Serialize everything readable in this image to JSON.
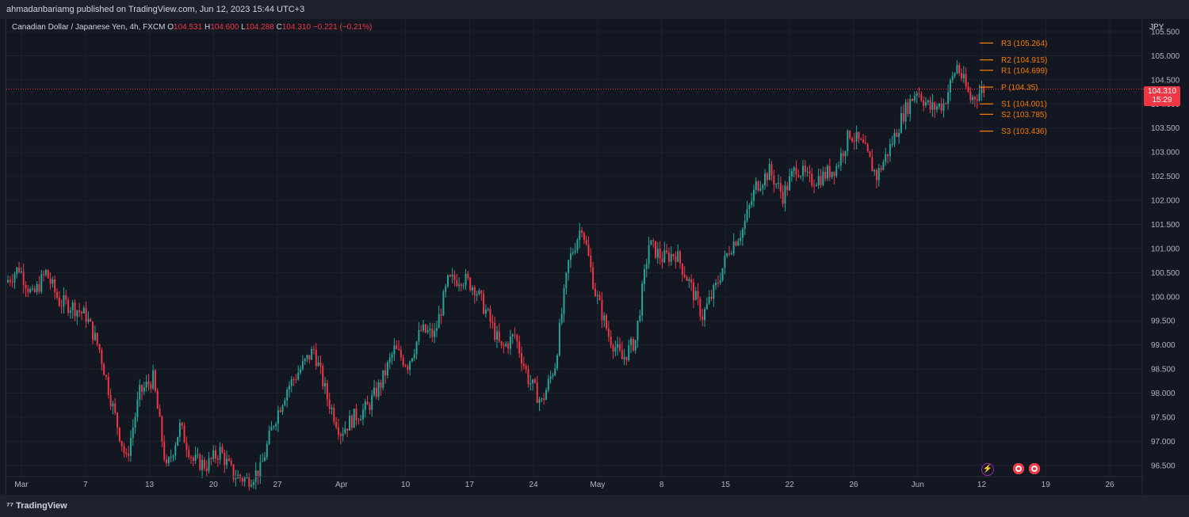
{
  "header": {
    "published": "ahmadanbariamg published on TradingView.com, Jun 12, 2023 15:44 UTC+3"
  },
  "legend": {
    "symbol": "Canadian Dollar / Japanese Yen, 4h, FXCM",
    "open_label": "O",
    "open": "104.531",
    "high_label": "H",
    "high": "104.600",
    "low_label": "L",
    "low": "104.288",
    "close_label": "C",
    "close": "104.310",
    "change": "−0.221 (−0.21%)"
  },
  "price_axis": {
    "currency": "JPY",
    "current_price": "104.310",
    "countdown": "15:29"
  },
  "footer": {
    "brand": "TradingView"
  },
  "colors": {
    "up": "#26a69a",
    "down": "#f23645",
    "pivot": "#f57c00",
    "background": "#131722",
    "grid": "#1e222d"
  },
  "icons": {
    "event_lightning": "lightning-icon",
    "event_dividend": "event-marker-icon"
  },
  "chart_data": {
    "type": "candlestick",
    "title": "Canadian Dollar / Japanese Yen, 4h, FXCM",
    "ylim": [
      96.3,
      105.5
    ],
    "y_ticks": [
      "96.500",
      "97.000",
      "97.500",
      "98.000",
      "98.500",
      "99.000",
      "99.500",
      "100.000",
      "100.500",
      "101.000",
      "101.500",
      "102.000",
      "102.500",
      "103.000",
      "103.500",
      "104.000",
      "104.500",
      "105.000",
      "105.500"
    ],
    "x_ticks": [
      "Mar",
      "7",
      "13",
      "20",
      "27",
      "Apr",
      "10",
      "17",
      "24",
      "May",
      "8",
      "15",
      "22",
      "26",
      "Jun",
      "12",
      "19",
      "26"
    ],
    "last_price": 104.31,
    "pivots": [
      {
        "name": "R3",
        "value": 105.264,
        "label": "R3 (105.264)"
      },
      {
        "name": "R2",
        "value": 104.915,
        "label": "R2 (104.915)"
      },
      {
        "name": "R1",
        "value": 104.699,
        "label": "R1 (104.699)"
      },
      {
        "name": "P",
        "value": 104.35,
        "label": "P (104.35)"
      },
      {
        "name": "S1",
        "value": 104.001,
        "label": "S1 (104.001)"
      },
      {
        "name": "S2",
        "value": 103.785,
        "label": "S2 (103.785)"
      },
      {
        "name": "S3",
        "value": 103.436,
        "label": "S3 (103.436)"
      }
    ],
    "price_path": [
      [
        "Mar 1",
        100.3
      ],
      [
        "Mar 2",
        100.6
      ],
      [
        "Mar 3",
        100.0
      ],
      [
        "Mar 6",
        100.5
      ],
      [
        "Mar 7",
        99.9
      ],
      [
        "Mar 8",
        99.8
      ],
      [
        "Mar 9",
        99.6
      ],
      [
        "Mar 10",
        98.9
      ],
      [
        "Mar 13",
        97.7
      ],
      [
        "Mar 14",
        96.6
      ],
      [
        "Mar 15",
        98.0
      ],
      [
        "Mar 16",
        98.3
      ],
      [
        "Mar 17",
        96.4
      ],
      [
        "Mar 20",
        97.3
      ],
      [
        "Mar 21",
        96.6
      ],
      [
        "Mar 22",
        96.5
      ],
      [
        "Mar 23",
        96.8
      ],
      [
        "Mar 24",
        96.3
      ],
      [
        "Mar 27",
        96.2
      ],
      [
        "Mar 28",
        96.4
      ],
      [
        "Mar 29",
        97.4
      ],
      [
        "Mar 30",
        98.1
      ],
      [
        "Mar 31",
        98.5
      ],
      [
        "Apr 3",
        98.9
      ],
      [
        "Apr 4",
        97.9
      ],
      [
        "Apr 5",
        97.2
      ],
      [
        "Apr 6",
        97.5
      ],
      [
        "Apr 7",
        97.7
      ],
      [
        "Apr 10",
        98.2
      ],
      [
        "Apr 11",
        98.9
      ],
      [
        "Apr 12",
        98.6
      ],
      [
        "Apr 13",
        99.3
      ],
      [
        "Apr 14",
        99.2
      ],
      [
        "Apr 17",
        100.3
      ],
      [
        "Apr 18",
        100.4
      ],
      [
        "Apr 19",
        100.2
      ],
      [
        "Apr 20",
        99.6
      ],
      [
        "Apr 21",
        98.9
      ],
      [
        "Apr 24",
        99.2
      ],
      [
        "Apr 25",
        98.3
      ],
      [
        "Apr 26",
        97.8
      ],
      [
        "Apr 27",
        98.6
      ],
      [
        "Apr 28",
        100.7
      ],
      [
        "May 1",
        101.5
      ],
      [
        "May 2",
        100.1
      ],
      [
        "May 3",
        99.2
      ],
      [
        "May 4",
        98.7
      ],
      [
        "May 5",
        99.1
      ],
      [
        "May 8",
        101.1
      ],
      [
        "May 9",
        100.8
      ],
      [
        "May 10",
        100.9
      ],
      [
        "May 11",
        100.3
      ],
      [
        "May 12",
        99.6
      ],
      [
        "May 15",
        100.2
      ],
      [
        "May 16",
        101.0
      ],
      [
        "May 17",
        101.4
      ],
      [
        "May 18",
        102.3
      ],
      [
        "May 19",
        102.6
      ],
      [
        "May 22",
        102.1
      ],
      [
        "May 23",
        102.7
      ],
      [
        "May 24",
        102.4
      ],
      [
        "May 25",
        102.5
      ],
      [
        "May 26",
        102.7
      ],
      [
        "May 29",
        103.4
      ],
      [
        "May 30",
        103.1
      ],
      [
        "May 31",
        102.5
      ],
      [
        "Jun 1",
        103.1
      ],
      [
        "Jun 2",
        103.8
      ],
      [
        "Jun 5",
        104.3
      ],
      [
        "Jun 6",
        103.9
      ],
      [
        "Jun 7",
        104.0
      ],
      [
        "Jun 8",
        104.8
      ],
      [
        "Jun 9",
        104.1
      ],
      [
        "Jun 12",
        104.31
      ]
    ]
  }
}
